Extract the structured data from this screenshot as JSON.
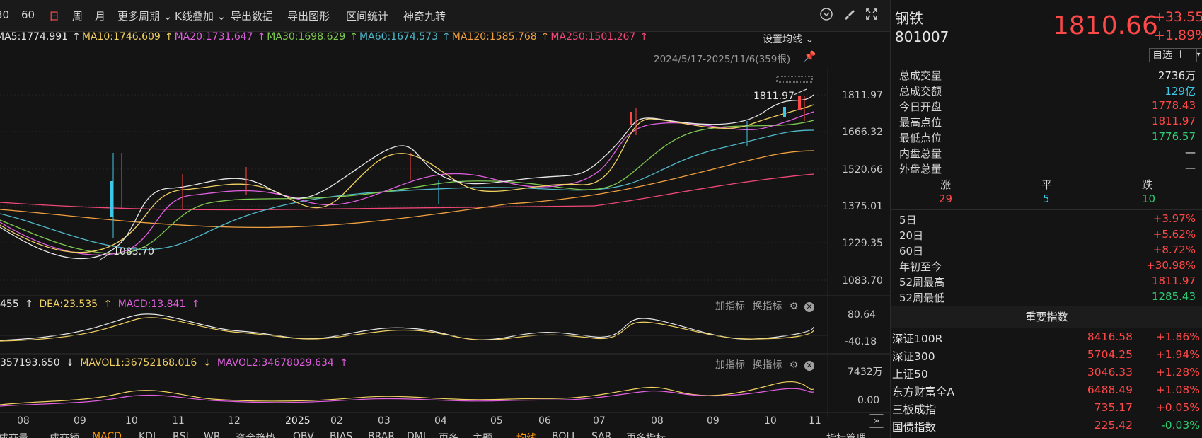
{
  "toolbar": {
    "items": [
      "30",
      "60",
      "日",
      "周",
      "月",
      "更多周期 ⌄",
      "K线叠加 ⌄",
      "导出数据",
      "导出图形",
      "区间统计",
      "神奇九转"
    ],
    "active_index": 2
  },
  "ma_line": {
    "items": [
      {
        "text": "MA5:1774.991",
        "color": "#e6e6e6"
      },
      {
        "text": "MA10:1746.609",
        "color": "#f0d060"
      },
      {
        "text": "MA20:1731.647",
        "color": "#e060e0"
      },
      {
        "text": "MA30:1698.629",
        "color": "#7ec850"
      },
      {
        "text": "MA60:1674.573",
        "color": "#50b8c8"
      },
      {
        "text": "MA120:1585.768",
        "color": "#f0a040"
      },
      {
        "text": "MA250:1501.267",
        "color": "#f04878"
      }
    ],
    "setting": "设置均线 ⌄",
    "date_range": "2024/5/17-2025/11/6(359根)"
  },
  "kline": {
    "y_ticks": [
      "1811.97",
      "1666.32",
      "1520.66",
      "1375.01",
      "1229.35",
      "1083.70"
    ],
    "high_label": "1811.97",
    "low_label": "1083.70"
  },
  "macd": {
    "header": [
      {
        "text": "455",
        "color": "#e6e6e6"
      },
      {
        "text": "DEA:23.535",
        "color": "#f0d060"
      },
      {
        "text": "MACD:13.841",
        "color": "#e060e0"
      }
    ],
    "y_ticks": [
      "80.64",
      "-40.18"
    ],
    "btn_add": "加指标",
    "btn_switch": "换指标"
  },
  "volume": {
    "header": [
      {
        "text": "357193.650",
        "color": "#e6e6e6"
      },
      {
        "text": "MAVOL1:36752168.016",
        "color": "#f0d060"
      },
      {
        "text": "MAVOL2:34678029.634",
        "color": "#e060e0"
      }
    ],
    "y_ticks": [
      "7432万",
      "0.00"
    ],
    "btn_add": "加指标",
    "btn_switch": "换指标"
  },
  "x_axis": {
    "labels": [
      "08",
      "09",
      "10",
      "11",
      "12",
      "2025",
      "02",
      "03",
      "04",
      "05",
      "06",
      "07",
      "08",
      "09",
      "10",
      "11"
    ]
  },
  "bottom_tabs": [
    "成交量",
    "成交额",
    "MACD",
    "KDJ",
    "RSI",
    "WR",
    "资金趋势",
    "OBV",
    "BIAS",
    "BRAR",
    "DMI",
    "更多",
    "主题",
    "均线",
    "BOLL",
    "SAR",
    "更多指标",
    "指标管理"
  ],
  "quote": {
    "name": "钢铁",
    "code": "801007",
    "price": "1810.66",
    "change": "+33.55",
    "change_pct": "+1.89%",
    "watch_btn": "自选 ＋",
    "stats": [
      {
        "label": "总成交量",
        "value": "2736万",
        "color": "white"
      },
      {
        "label": "总成交额",
        "value": "129亿",
        "color": "cyan"
      },
      {
        "label": "今日开盘",
        "value": "1778.43",
        "color": "red"
      },
      {
        "label": "最高点位",
        "value": "1811.97",
        "color": "red"
      },
      {
        "label": "最低点位",
        "value": "1776.57",
        "color": "green"
      },
      {
        "label": "内盘总量",
        "value": "—",
        "color": "white"
      },
      {
        "label": "外盘总量",
        "value": "—",
        "color": "white"
      }
    ],
    "breadth": {
      "up_label": "涨",
      "flat_label": "平",
      "down_label": "跌",
      "up": "29",
      "flat": "5",
      "down": "10"
    },
    "perf": [
      {
        "label": "5日",
        "value": "+3.97%"
      },
      {
        "label": "20日",
        "value": "+5.62%"
      },
      {
        "label": "60日",
        "value": "+8.72%"
      },
      {
        "label": "年初至今",
        "value": "+30.98%"
      },
      {
        "label": "52周最高",
        "value": "1811.97",
        "color": "red"
      },
      {
        "label": "52周最低",
        "value": "1285.43",
        "color": "green"
      }
    ]
  },
  "indices": {
    "title": "重要指数",
    "rows": [
      {
        "name": "深证100R",
        "price": "8416.58",
        "change": "+1.86%",
        "color": "red"
      },
      {
        "name": "深证300",
        "price": "5704.25",
        "change": "+1.94%",
        "color": "red"
      },
      {
        "name": "上证50",
        "price": "3046.33",
        "change": "+1.28%",
        "color": "red"
      },
      {
        "name": "东方财富全A",
        "price": "6488.49",
        "change": "+1.08%",
        "color": "red"
      },
      {
        "name": "三板成指",
        "price": "735.17",
        "change": "+0.05%",
        "color": "red"
      },
      {
        "name": "国债指数",
        "price": "225.42",
        "change": "-0.03%",
        "color": "green"
      }
    ]
  },
  "colors": {
    "up": "#ff4848",
    "down": "#2ecc71",
    "cyan": "#3cc8e6",
    "bg": "#141414"
  }
}
